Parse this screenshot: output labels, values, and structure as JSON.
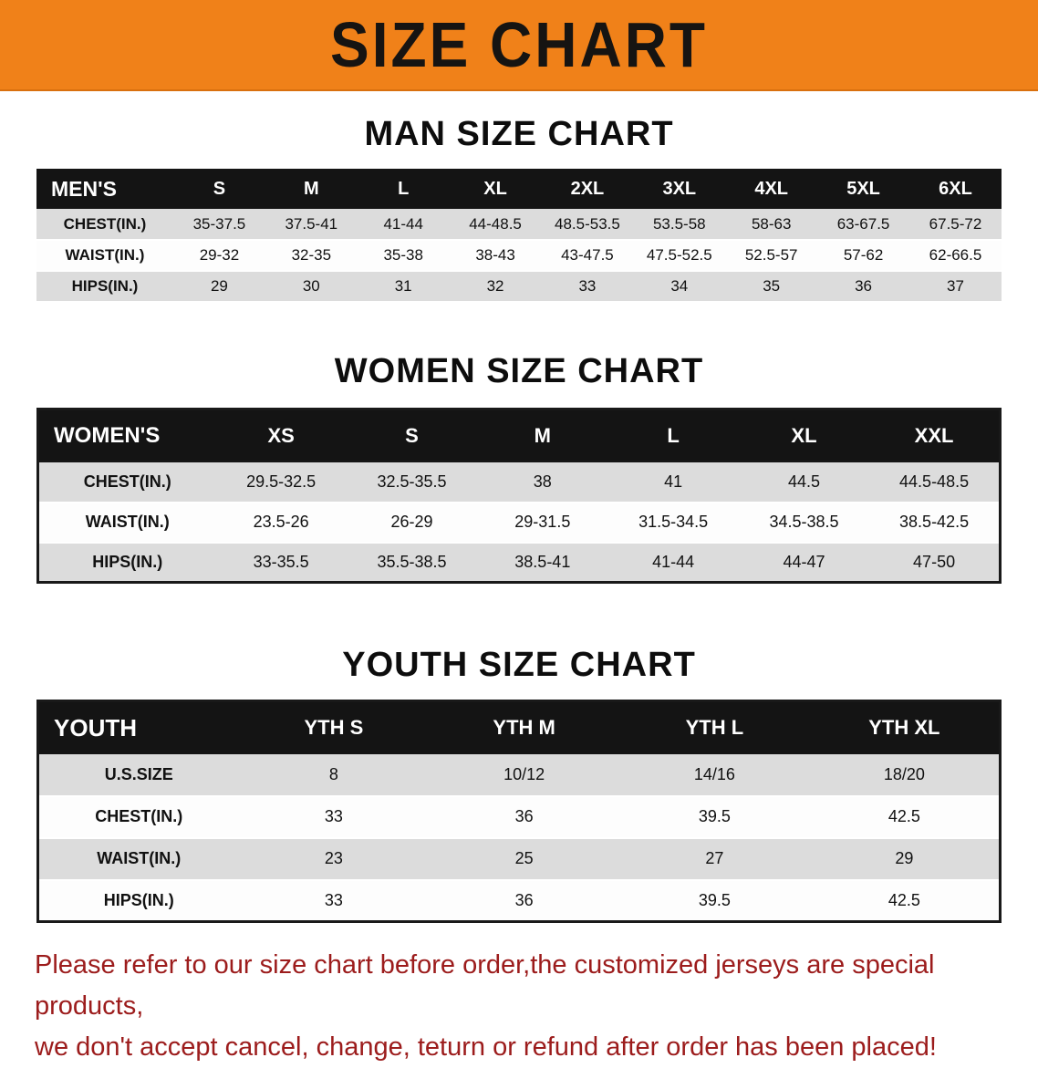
{
  "banner": {
    "title": "SIZE CHART",
    "background_color": "#F08119",
    "text_color": "#161412"
  },
  "sections": [
    {
      "id": "men",
      "heading": "MAN SIZE CHART",
      "table": {
        "label_header": "MEN'S",
        "columns": [
          "S",
          "M",
          "L",
          "XL",
          "2XL",
          "3XL",
          "4XL",
          "5XL",
          "6XL"
        ],
        "rows": [
          {
            "label": "CHEST(IN.)",
            "values": [
              "35-37.5",
              "37.5-41",
              "41-44",
              "44-48.5",
              "48.5-53.5",
              "53.5-58",
              "58-63",
              "63-67.5",
              "67.5-72"
            ]
          },
          {
            "label": "WAIST(IN.)",
            "values": [
              "29-32",
              "32-35",
              "35-38",
              "38-43",
              "43-47.5",
              "47.5-52.5",
              "52.5-57",
              "57-62",
              "62-66.5"
            ]
          },
          {
            "label": "HIPS(IN.)",
            "values": [
              "29",
              "30",
              "31",
              "32",
              "33",
              "34",
              "35",
              "36",
              "37"
            ]
          }
        ]
      }
    },
    {
      "id": "women",
      "heading": "WOMEN SIZE CHART",
      "table": {
        "label_header": "WOMEN'S",
        "columns": [
          "XS",
          "S",
          "M",
          "L",
          "XL",
          "XXL"
        ],
        "rows": [
          {
            "label": "CHEST(IN.)",
            "values": [
              "29.5-32.5",
              "32.5-35.5",
              "38",
              "41",
              "44.5",
              "44.5-48.5"
            ]
          },
          {
            "label": "WAIST(IN.)",
            "values": [
              "23.5-26",
              "26-29",
              "29-31.5",
              "31.5-34.5",
              "34.5-38.5",
              "38.5-42.5"
            ]
          },
          {
            "label": "HIPS(IN.)",
            "values": [
              "33-35.5",
              "35.5-38.5",
              "38.5-41",
              "41-44",
              "44-47",
              "47-50"
            ]
          }
        ]
      }
    },
    {
      "id": "youth",
      "heading": "YOUTH SIZE CHART",
      "table": {
        "label_header": "YOUTH",
        "columns": [
          "YTH S",
          "YTH M",
          "YTH L",
          "YTH XL"
        ],
        "rows": [
          {
            "label": "U.S.SIZE",
            "values": [
              "8",
              "10/12",
              "14/16",
              "18/20"
            ]
          },
          {
            "label": "CHEST(IN.)",
            "values": [
              "33",
              "36",
              "39.5",
              "42.5"
            ]
          },
          {
            "label": "WAIST(IN.)",
            "values": [
              "23",
              "25",
              "27",
              "29"
            ]
          },
          {
            "label": "HIPS(IN.)",
            "values": [
              "33",
              "36",
              "39.5",
              "42.5"
            ]
          }
        ]
      }
    }
  ],
  "disclaimer": {
    "text_color": "#9C1C1C",
    "line1": "Please refer to our size chart before order,the customized jerseys are special products,",
    "line2": "we don't accept cancel, change, teturn or refund after order has been placed!"
  }
}
